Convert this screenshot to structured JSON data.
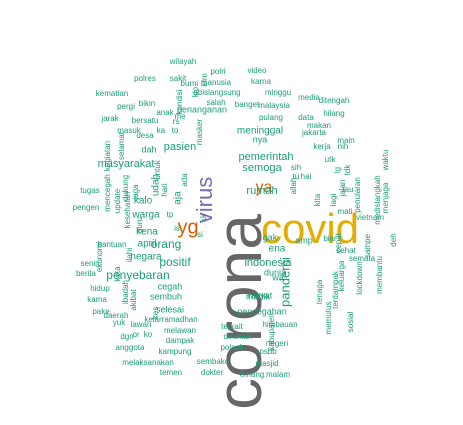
{
  "colors": {
    "teal": "#1b9e77",
    "orange": "#d95f02",
    "purple": "#7570b3",
    "gold": "#e6ab02",
    "gray": "#666666"
  },
  "words": [
    {
      "text": "corona",
      "color": "gray"
    },
    {
      "text": "covid",
      "color": "gold"
    },
    {
      "text": "virus",
      "color": "purple"
    },
    {
      "text": "yg",
      "color": "orange"
    },
    {
      "text": "ya",
      "color": "orange"
    },
    {
      "text": "pandemi",
      "color": "teal"
    },
    {
      "text": "indonesia",
      "color": "teal"
    },
    {
      "text": "orang",
      "color": "teal"
    },
    {
      "text": "penyebaran",
      "color": "teal"
    },
    {
      "text": "positif",
      "color": "teal"
    },
    {
      "text": "semoga",
      "color": "teal"
    },
    {
      "text": "rumah",
      "color": "teal"
    },
    {
      "text": "pemerintah",
      "color": "teal"
    },
    {
      "text": "pasien",
      "color": "teal"
    },
    {
      "text": "masyarakat",
      "color": "teal"
    },
    {
      "text": "meninggal",
      "color": "teal"
    },
    {
      "text": "warga",
      "color": "teal"
    },
    {
      "text": "april",
      "color": "teal"
    },
    {
      "text": "kalo",
      "color": "teal"
    },
    {
      "text": "negara",
      "color": "teal"
    },
    {
      "text": "kena",
      "color": "teal"
    },
    {
      "text": "aja",
      "color": "teal"
    },
    {
      "text": "udah",
      "color": "teal"
    },
    {
      "text": "ena",
      "color": "teal"
    },
    {
      "text": "gak",
      "color": "teal"
    },
    {
      "text": "amp",
      "color": "teal"
    },
    {
      "text": "dunia",
      "color": "teal"
    },
    {
      "text": "mudik",
      "color": "teal"
    },
    {
      "text": "pencegahan",
      "color": "teal"
    },
    {
      "text": "wilayah",
      "color": "teal"
    },
    {
      "text": "polri",
      "color": "teal"
    },
    {
      "text": "video",
      "color": "teal"
    },
    {
      "text": "sakit",
      "color": "teal"
    },
    {
      "text": "manusia",
      "color": "teal"
    },
    {
      "text": "karna",
      "color": "teal"
    },
    {
      "text": "polres",
      "color": "teal"
    },
    {
      "text": "abislangsung",
      "color": "teal"
    },
    {
      "text": "minggu",
      "color": "teal"
    },
    {
      "text": "kematian",
      "color": "teal"
    },
    {
      "text": "salah",
      "color": "teal"
    },
    {
      "text": "media",
      "color": "teal"
    },
    {
      "text": "bikin",
      "color": "teal"
    },
    {
      "text": "banget",
      "color": "teal"
    },
    {
      "text": "malaysia",
      "color": "teal"
    },
    {
      "text": "ditengah",
      "color": "teal"
    },
    {
      "text": "pergi",
      "color": "teal"
    },
    {
      "text": "anak",
      "color": "teal"
    },
    {
      "text": "penanganan",
      "color": "teal"
    },
    {
      "text": "hilang",
      "color": "teal"
    },
    {
      "text": "jarak",
      "color": "teal"
    },
    {
      "text": "bersatu",
      "color": "teal"
    },
    {
      "text": "pulang",
      "color": "teal"
    },
    {
      "text": "data",
      "color": "teal"
    },
    {
      "text": "makan",
      "color": "teal"
    },
    {
      "text": "masuk",
      "color": "teal"
    },
    {
      "text": "jakarta",
      "color": "teal"
    },
    {
      "text": "main",
      "color": "teal"
    },
    {
      "text": "kerja",
      "color": "teal"
    },
    {
      "text": "nih",
      "color": "teal"
    },
    {
      "text": "medislangkah",
      "color": "teal"
    },
    {
      "text": "waktu",
      "color": "teal"
    },
    {
      "text": "menjaga",
      "color": "teal"
    },
    {
      "text": "kegiatan",
      "color": "teal"
    },
    {
      "text": "mencegah",
      "color": "teal"
    },
    {
      "text": "update",
      "color": "teal"
    },
    {
      "text": "kesehatan",
      "color": "teal"
    },
    {
      "text": "tugas",
      "color": "teal"
    },
    {
      "text": "pengen",
      "color": "teal"
    },
    {
      "text": "ekonomi",
      "color": "teal"
    },
    {
      "text": "bantuan",
      "color": "teal"
    },
    {
      "text": "berita",
      "color": "teal"
    },
    {
      "text": "hidup",
      "color": "teal"
    },
    {
      "text": "kama",
      "color": "teal"
    },
    {
      "text": "pake",
      "color": "teal"
    },
    {
      "text": "yuk",
      "color": "teal"
    },
    {
      "text": "senin",
      "color": "teal"
    },
    {
      "text": "sembuh",
      "color": "teal"
    },
    {
      "text": "cegah",
      "color": "teal"
    },
    {
      "text": "selesai",
      "color": "teal"
    },
    {
      "text": "kelarramadhan",
      "color": "teal"
    },
    {
      "text": "lawan",
      "color": "teal"
    },
    {
      "text": "melawan",
      "color": "teal"
    },
    {
      "text": "dampak",
      "color": "teal"
    },
    {
      "text": "kampung",
      "color": "teal"
    },
    {
      "text": "terkait",
      "color": "teal"
    },
    {
      "text": "himbauan",
      "color": "teal"
    },
    {
      "text": "dirumah",
      "color": "teal"
    },
    {
      "text": "negeri",
      "color": "teal"
    },
    {
      "text": "polsek",
      "color": "teal"
    },
    {
      "text": "psbb",
      "color": "teal"
    },
    {
      "text": "masjid",
      "color": "teal"
    },
    {
      "text": "melaksanakan",
      "color": "teal"
    },
    {
      "text": "sembako",
      "color": "teal"
    },
    {
      "text": "temen",
      "color": "teal"
    },
    {
      "text": "dokter",
      "color": "teal"
    },
    {
      "text": "emang",
      "color": "teal"
    },
    {
      "text": "malam",
      "color": "teal"
    },
    {
      "text": "rakyat",
      "color": "teal"
    },
    {
      "text": "keluarga",
      "color": "teal"
    },
    {
      "text": "lockdown",
      "color": "teal"
    },
    {
      "text": "membantu",
      "color": "teal"
    },
    {
      "text": "vietnam",
      "color": "teal"
    },
    {
      "text": "deh",
      "color": "teal"
    },
    {
      "text": "mati",
      "color": "teal"
    },
    {
      "text": "sampe",
      "color": "teal"
    },
    {
      "text": "semata",
      "color": "teal"
    },
    {
      "text": "penularan",
      "color": "teal"
    },
    {
      "text": "sehat",
      "color": "teal"
    },
    {
      "text": "tau",
      "color": "teal"
    },
    {
      "text": "biar",
      "color": "teal"
    },
    {
      "text": "allah",
      "color": "teal"
    },
    {
      "text": "daerah",
      "color": "teal"
    },
    {
      "text": "anggota",
      "color": "teal"
    },
    {
      "text": "dgn",
      "color": "teal"
    },
    {
      "text": "kabupaten",
      "color": "teal"
    },
    {
      "text": "cepat",
      "color": "teal"
    },
    {
      "text": "utk",
      "color": "teal"
    },
    {
      "text": "tu",
      "color": "teal"
    },
    {
      "text": "hai",
      "color": "teal"
    },
    {
      "text": "sih",
      "color": "teal"
    },
    {
      "text": "wa",
      "color": "teal"
    },
    {
      "text": "nya",
      "color": "teal"
    },
    {
      "text": "dah",
      "color": "teal"
    },
    {
      "text": "ka",
      "color": "teal"
    },
    {
      "text": "to",
      "color": "teal"
    },
    {
      "text": "rs",
      "color": "teal"
    },
    {
      "text": "kita",
      "color": "teal"
    },
    {
      "text": "lagi",
      "color": "teal"
    },
    {
      "text": "ada",
      "color": "teal"
    },
    {
      "text": "ko",
      "color": "teal"
    },
    {
      "text": "or",
      "color": "teal"
    },
    {
      "text": "si",
      "color": "teal"
    },
    {
      "text": "is",
      "color": "teal"
    },
    {
      "text": "tp",
      "color": "teal"
    },
    {
      "text": "kk",
      "color": "teal"
    },
    {
      "text": "lg",
      "color": "teal"
    },
    {
      "text": "tdk",
      "color": "teal"
    },
    {
      "text": "jalan",
      "color": "teal"
    },
    {
      "text": "masker",
      "color": "teal"
    },
    {
      "text": "hari",
      "color": "teal"
    },
    {
      "text": "desa",
      "color": "teal"
    },
    {
      "text": "kondisi",
      "color": "teal"
    },
    {
      "text": "selamat",
      "color": "teal"
    },
    {
      "text": "dukung",
      "color": "teal"
    },
    {
      "text": "bu",
      "color": "teal"
    },
    {
      "text": "mi",
      "color": "teal"
    },
    {
      "text": "ibadah",
      "color": "teal"
    },
    {
      "text": "akibat",
      "color": "teal"
    },
    {
      "text": "kota",
      "color": "teal"
    },
    {
      "text": "tenaga",
      "color": "teal"
    },
    {
      "text": "memutus",
      "color": "teal"
    },
    {
      "text": "sosial",
      "color": "teal"
    },
    {
      "text": "terdampak",
      "color": "teal"
    },
    {
      "text": "ilahi",
      "color": "teal"
    },
    {
      "text": "krm",
      "color": "teal"
    },
    {
      "text": "me",
      "color": "teal"
    },
    {
      "text": "klo",
      "color": "teal"
    },
    {
      "text": "untuk",
      "color": "teal"
    },
    {
      "text": "jaga",
      "color": "teal"
    },
    {
      "text": "guru",
      "color": "teal"
    },
    {
      "text": "kes",
      "color": "teal"
    }
  ]
}
